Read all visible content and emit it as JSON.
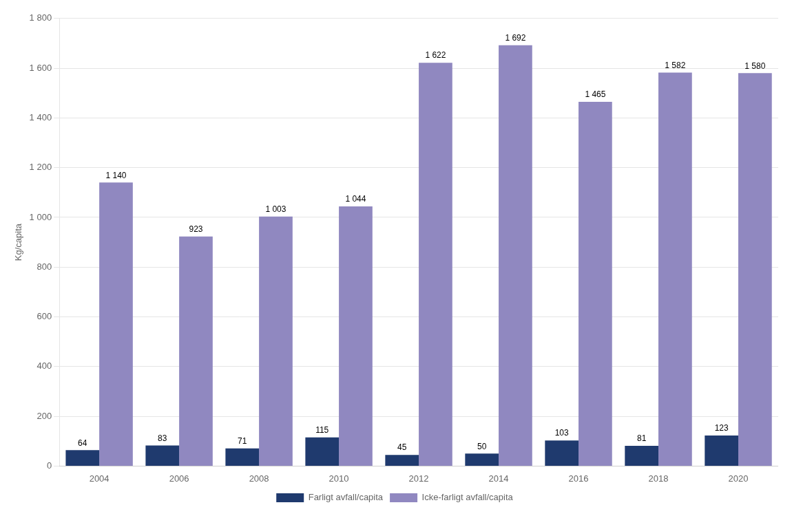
{
  "chart_data": {
    "type": "bar",
    "ylabel": "Kg/capita",
    "categories": [
      "2004",
      "2006",
      "2008",
      "2010",
      "2012",
      "2014",
      "2016",
      "2018",
      "2020"
    ],
    "series": [
      {
        "name": "Farligt avfall/capita",
        "color": "#1F3A6E",
        "values": [
          64,
          83,
          71,
          115,
          45,
          50,
          103,
          81,
          123
        ]
      },
      {
        "name": "Icke-farligt avfall/capita",
        "color": "#9088C0",
        "values": [
          1140,
          923,
          1003,
          1044,
          1622,
          1692,
          1465,
          1582,
          1580
        ],
        "value_labels": [
          "1 140",
          "923",
          "1 003",
          "1 044",
          "1 622",
          "1 692",
          "1 465",
          "1 582",
          "1 580"
        ]
      }
    ],
    "ylim": [
      0,
      1800
    ],
    "yticks": [
      0,
      200,
      400,
      600,
      800,
      {
        "value": 1000,
        "label": "1 000"
      },
      {
        "value": 1200,
        "label": "1 200"
      },
      {
        "value": 1400,
        "label": "1 400"
      },
      {
        "value": 1600,
        "label": "1 600"
      },
      {
        "value": 1800,
        "label": "1 800"
      }
    ],
    "grid": true,
    "legend": "bottom",
    "data_labels": true
  }
}
